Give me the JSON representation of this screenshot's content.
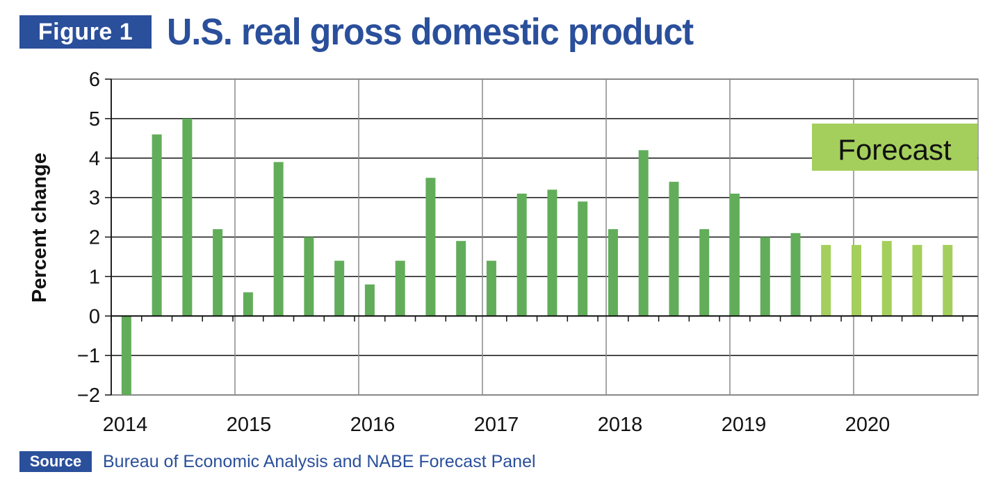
{
  "figure": {
    "badge": "Figure 1",
    "title": "U.S. real gross domestic product"
  },
  "source": {
    "badge": "Source",
    "text": "Bureau of Economic Analysis and NABE Forecast Panel"
  },
  "colors": {
    "brand": "#2a4f9b",
    "actual": "#62ad5a",
    "forecast": "#a4cf5c",
    "grid": "#888888"
  },
  "chart_data": {
    "type": "bar",
    "title": "U.S. real gross domestic product",
    "ylabel": "Percent change",
    "xlabel": "",
    "ylim": [
      -2,
      6
    ],
    "yticks": [
      -2,
      -1,
      0,
      1,
      2,
      3,
      4,
      5,
      6
    ],
    "ytick_labels": [
      "−2",
      "−1",
      "0",
      "1",
      "2",
      "3",
      "4",
      "5",
      "6"
    ],
    "xtick_labels": [
      "2014",
      "2015",
      "2016",
      "2017",
      "2018",
      "2019",
      "2020"
    ],
    "grid": true,
    "annotation": "Forecast",
    "annotation_placement": "top-right",
    "categories": [
      "2014 Q1",
      "2014 Q2",
      "2014 Q3",
      "2014 Q4",
      "2015 Q1",
      "2015 Q2",
      "2015 Q3",
      "2015 Q4",
      "2016 Q1",
      "2016 Q2",
      "2016 Q3",
      "2016 Q4",
      "2017 Q1",
      "2017 Q2",
      "2017 Q3",
      "2017 Q4",
      "2018 Q1",
      "2018 Q2",
      "2018 Q3",
      "2018 Q4",
      "2019 Q1",
      "2019 Q2",
      "2019 Q3",
      "2019 Q4",
      "2020 Q1",
      "2020 Q2",
      "2020 Q3",
      "2020 Q4"
    ],
    "values": [
      -2.0,
      4.6,
      5.0,
      2.2,
      0.6,
      3.9,
      2.0,
      1.4,
      0.8,
      1.4,
      3.5,
      1.9,
      1.4,
      3.1,
      3.2,
      2.9,
      2.2,
      4.2,
      3.4,
      2.2,
      3.1,
      2.0,
      2.1,
      1.8,
      1.8,
      1.9,
      1.8,
      1.8
    ],
    "forecast": [
      false,
      false,
      false,
      false,
      false,
      false,
      false,
      false,
      false,
      false,
      false,
      false,
      false,
      false,
      false,
      false,
      false,
      false,
      false,
      false,
      false,
      false,
      false,
      true,
      true,
      true,
      true,
      true
    ]
  }
}
